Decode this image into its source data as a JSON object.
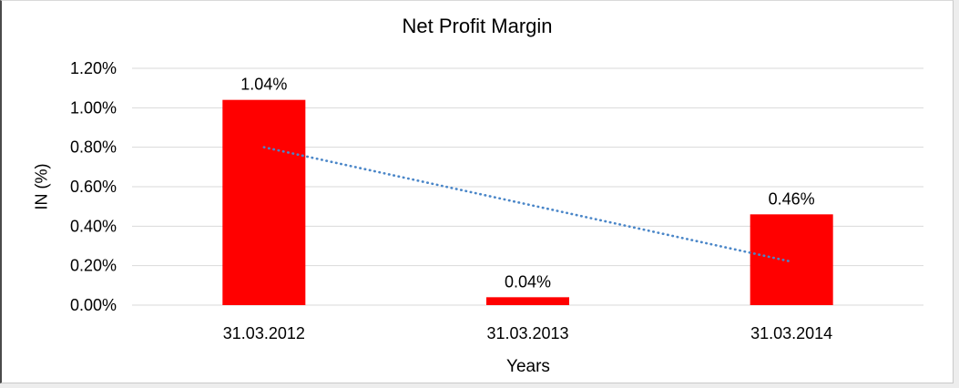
{
  "chart_data": {
    "type": "bar",
    "title": "Net Profit Margin",
    "xlabel": "Years",
    "ylabel": "IN (%)",
    "categories": [
      "31.03.2012",
      "31.03.2013",
      "31.03.2014"
    ],
    "values": [
      1.04,
      0.04,
      0.46
    ],
    "value_labels": [
      "1.04%",
      "0.04%",
      "0.46%"
    ],
    "ylim": [
      0,
      1.2
    ],
    "ytick_values": [
      0,
      0.2,
      0.4,
      0.6,
      0.8,
      1.0,
      1.2
    ],
    "ytick_labels": [
      "0.00%",
      "0.20%",
      "0.40%",
      "0.60%",
      "0.80%",
      "1.00%",
      "1.20%"
    ],
    "grid": "horizontal",
    "legend": "none",
    "bar_color": "#ff0000",
    "gridline_color": "#d9d9d9",
    "text_color": "#000000",
    "trendline": {
      "type": "linear",
      "style": "dotted",
      "color": "#4a86c8",
      "start_value": 0.8,
      "end_value": 0.22
    }
  }
}
